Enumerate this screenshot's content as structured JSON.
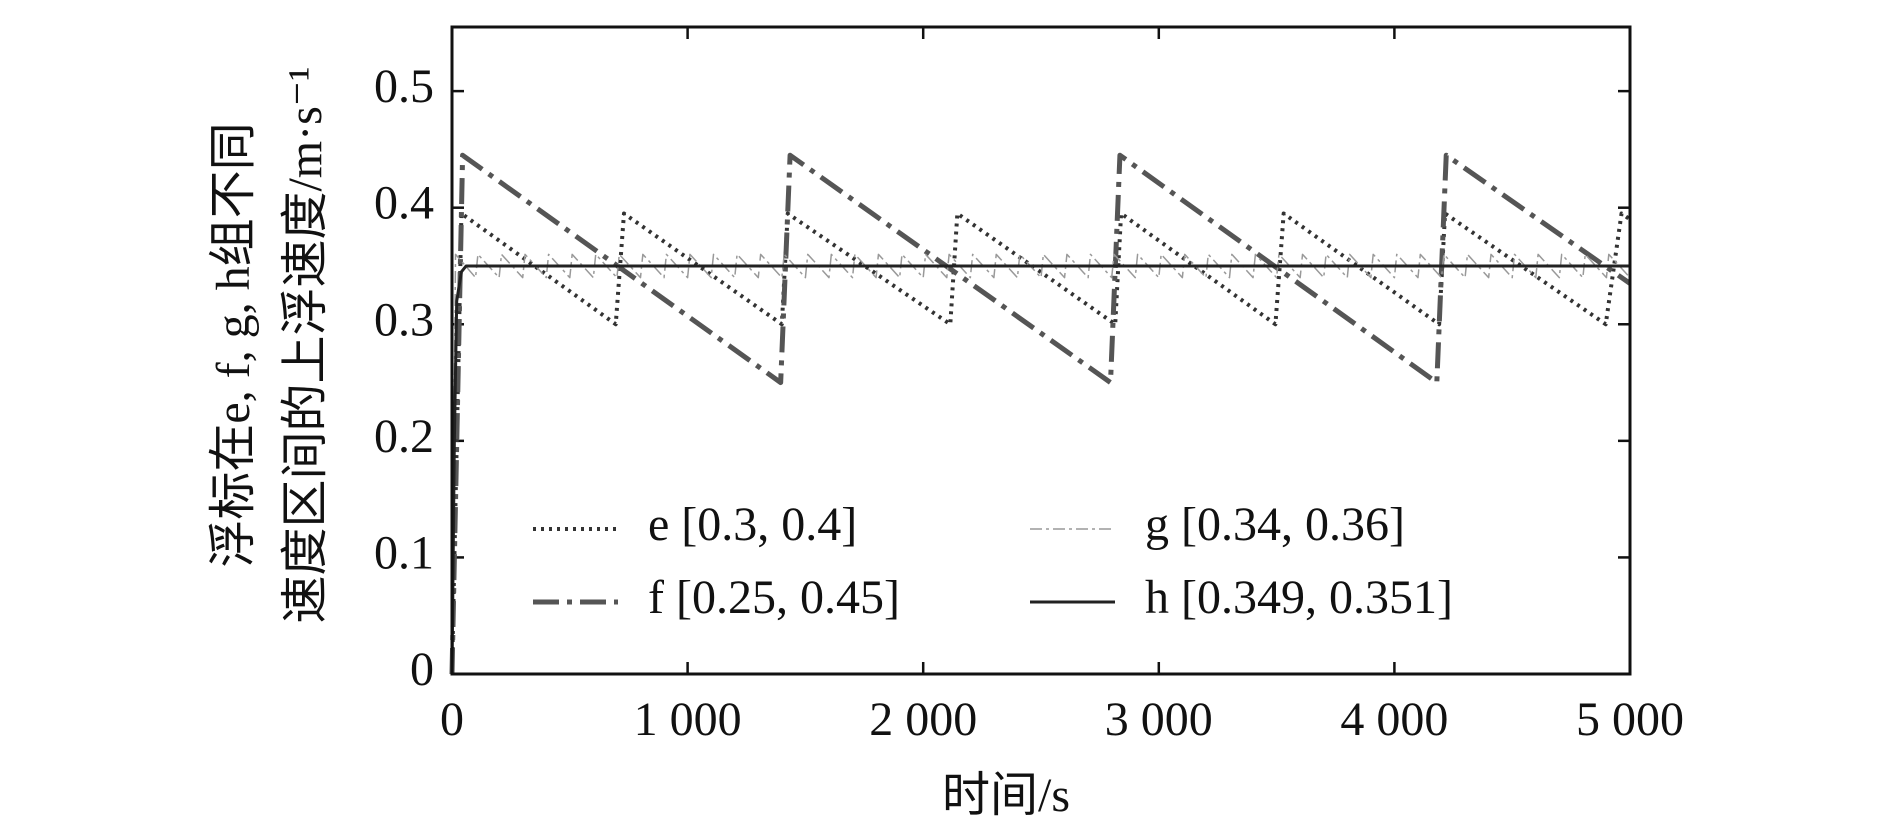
{
  "chart_data": {
    "type": "line",
    "xlabel": "时间/s",
    "ylabel": [
      "浮标在e, f, g, h组不同",
      "速度区间的上浮速度/m·s⁻¹"
    ],
    "xlim": [
      0,
      5000
    ],
    "ylim": [
      0,
      0.555
    ],
    "xticks": [
      0,
      {
        "value": 1000,
        "label": "1 000"
      },
      {
        "value": 2000,
        "label": "2 000"
      },
      {
        "value": 3000,
        "label": "3 000"
      },
      {
        "value": 4000,
        "label": "4 000"
      },
      {
        "value": 5000,
        "label": "5 000"
      }
    ],
    "yticks": [
      0,
      0.1,
      0.2,
      0.3,
      0.4,
      0.5
    ],
    "grid": false,
    "legend": "bottom",
    "series": [
      {
        "name": "e [0.3, 0.4]",
        "color": "#333333",
        "dash": "3 5",
        "width": 4,
        "x": [
          0,
          40,
          695,
          730,
          1400,
          1425,
          2115,
          2145,
          2815,
          2840,
          3495,
          3530,
          4190,
          4215,
          4897,
          4964,
          5000
        ],
        "values": [
          0,
          0.395,
          0.3,
          0.395,
          0.3,
          0.395,
          0.3,
          0.395,
          0.3,
          0.395,
          0.3,
          0.395,
          0.3,
          0.395,
          0.3,
          0.395,
          0.39
        ]
      },
      {
        "name": "f [0.25, 0.45]",
        "color": "#555555",
        "dash": "26 8 5 8",
        "width": 5,
        "x": [
          0,
          45,
          1395,
          1435,
          2795,
          2835,
          4180,
          4220,
          5000
        ],
        "values": [
          0,
          0.445,
          0.25,
          0.445,
          0.25,
          0.445,
          0.25,
          0.445,
          0.335
        ]
      },
      {
        "name": "g [0.34, 0.36]",
        "color": "#999999",
        "dash": "12 4 3 4",
        "width": 1.5,
        "x": [
          0,
          15,
          100,
          110,
          200,
          210,
          300,
          310,
          400,
          410,
          500,
          510,
          600,
          610,
          700,
          710,
          800,
          810,
          900,
          910,
          1000,
          1010,
          1100,
          1110,
          1200,
          1210,
          1300,
          1310,
          1400,
          1410,
          1500,
          1510,
          1600,
          1610,
          1700,
          1710,
          1800,
          1810,
          1900,
          1910,
          2000,
          2010,
          2100,
          2110,
          2200,
          2210,
          2300,
          2310,
          2400,
          2410,
          2500,
          2510,
          2600,
          2610,
          2700,
          2710,
          2800,
          2810,
          2900,
          2910,
          3000,
          3010,
          3100,
          3110,
          3200,
          3210,
          3300,
          3310,
          3400,
          3410,
          3500,
          3510,
          3600,
          3610,
          3700,
          3710,
          3800,
          3810,
          3900,
          3910,
          4000,
          4010,
          4100,
          4110,
          4200,
          4210,
          4300,
          4310,
          4400,
          4410,
          4500,
          4510,
          4600,
          4610,
          4700,
          4710,
          4800,
          4810,
          4900,
          4910,
          5000
        ],
        "values": [
          0,
          0.36,
          0.34,
          0.36,
          0.34,
          0.36,
          0.34,
          0.36,
          0.34,
          0.36,
          0.34,
          0.36,
          0.34,
          0.36,
          0.34,
          0.36,
          0.34,
          0.36,
          0.34,
          0.36,
          0.34,
          0.36,
          0.34,
          0.36,
          0.34,
          0.36,
          0.34,
          0.36,
          0.34,
          0.36,
          0.34,
          0.36,
          0.34,
          0.36,
          0.34,
          0.36,
          0.34,
          0.36,
          0.34,
          0.36,
          0.34,
          0.36,
          0.34,
          0.36,
          0.34,
          0.36,
          0.34,
          0.36,
          0.34,
          0.36,
          0.34,
          0.36,
          0.34,
          0.36,
          0.34,
          0.36,
          0.34,
          0.36,
          0.34,
          0.36,
          0.34,
          0.36,
          0.34,
          0.36,
          0.34,
          0.36,
          0.34,
          0.36,
          0.34,
          0.36,
          0.34,
          0.36,
          0.34,
          0.36,
          0.34,
          0.36,
          0.34,
          0.36,
          0.34,
          0.36,
          0.34,
          0.36,
          0.34,
          0.36,
          0.34,
          0.36,
          0.34,
          0.36,
          0.34,
          0.36,
          0.34,
          0.36,
          0.34,
          0.36,
          0.34,
          0.36,
          0.34,
          0.36,
          0.34,
          0.36,
          0.34
        ]
      },
      {
        "name": "h [0.349, 0.351]",
        "color": "#222222",
        "dash": "none",
        "width": 3,
        "x": [
          0,
          10,
          20,
          40,
          60,
          5000
        ],
        "values": [
          0,
          0.2,
          0.32,
          0.345,
          0.35,
          0.35
        ]
      }
    ]
  }
}
